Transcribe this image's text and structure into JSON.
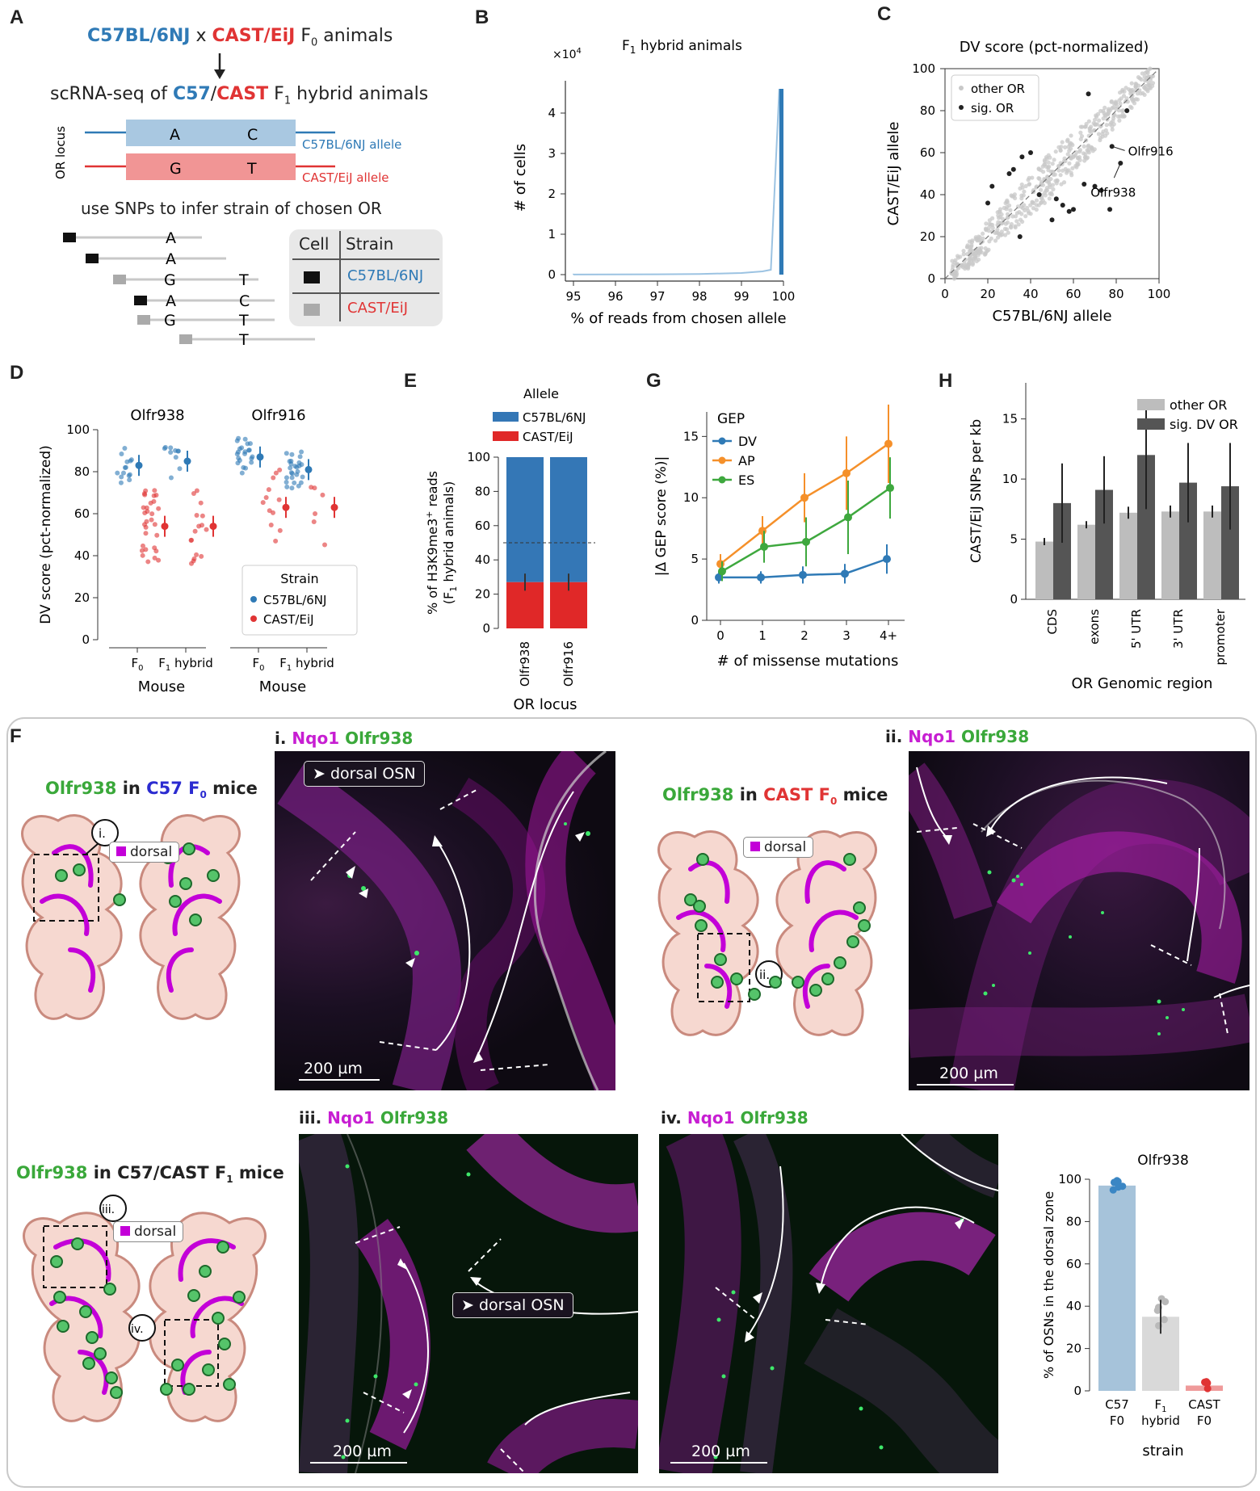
{
  "panels": {
    "A": {
      "letter": "A",
      "cross_a": "C57BL/6NJ",
      "cross_x": "x",
      "cross_b": "CAST/EiJ",
      "cross_f0": "F",
      "cross_f0_sub": "0",
      "cross_animals": "animals",
      "scrna_prefix": "scRNA-seq of ",
      "scrna_c57": "C57",
      "scrna_slash": "/",
      "scrna_cast": "CAST",
      "scrna_f1": " F",
      "scrna_f1_sub": "1",
      "scrna_suffix": " hybrid animals",
      "or_locus": "OR locus",
      "snp_a": "A",
      "snp_c": "C",
      "snp_g": "G",
      "snp_t": "T",
      "c57_allele": "C57BL/6NJ allele",
      "cast_allele": "CAST/EiJ allele",
      "snp_heading": "use SNPs to infer strain of chosen OR",
      "table_cell": "Cell",
      "table_strain": "Strain",
      "table_row1": "C57BL/6NJ",
      "table_row2": "CAST/EiJ"
    },
    "B": {
      "letter": "B"
    },
    "C": {
      "letter": "C"
    },
    "D": {
      "letter": "D"
    },
    "E": {
      "letter": "E"
    },
    "F": {
      "letter": "F",
      "c57_title_olfr": "Olfr938",
      "c57_title_in": " in ",
      "c57_title_strain": "C57 F",
      "c57_title_sub": "0",
      "c57_title_end": " mice",
      "cast_title_olfr": "Olfr938",
      "cast_title_in": " in ",
      "cast_title_strain": "CAST F",
      "cast_title_sub": "0",
      "cast_title_end": " mice",
      "f1_title_olfr": "Olfr938",
      "f1_title_in": " in C57/CAST F",
      "f1_title_sub": "1",
      "f1_title_end": " mice",
      "dorsal": "dorsal",
      "box_i": "i.",
      "box_ii": "ii.",
      "box_iii": "iii.",
      "box_iv": "iv.",
      "img_i_label": "i.",
      "img_ii_label": "ii.",
      "img_iii_label": "iii.",
      "img_iv_label": "iv.",
      "nqo1": "Nqo1",
      "olfr938": "Olfr938",
      "dorsal_osn": "dorsal OSN",
      "scale": "200 µm"
    },
    "G": {
      "letter": "G"
    },
    "H": {
      "letter": "H"
    }
  },
  "chart_data": [
    {
      "id": "B",
      "type": "bar",
      "title": "F1 hybrid animals",
      "title_main": "F",
      "title_sub": "1",
      "title_rest": " hybrid animals",
      "xlabel": "% of reads from chosen allele",
      "ylabel": "# of cells",
      "multiplier": "×10",
      "multiplier_exp": "4",
      "xlim": [
        95,
        100
      ],
      "ylim": [
        0,
        4.6
      ],
      "xticks": [
        "95",
        "96",
        "97",
        "98",
        "99",
        "100"
      ],
      "yticks": [
        "0",
        "1",
        "2",
        "3",
        "4"
      ],
      "x": [
        95.0,
        96.0,
        97.0,
        98.0,
        99.0,
        99.5,
        99.7,
        99.9
      ],
      "values": [
        0.002,
        0.004,
        0.008,
        0.015,
        0.04,
        0.08,
        0.12,
        4.6
      ]
    },
    {
      "id": "C",
      "type": "scatter",
      "title": "DV score (pct-normalized)",
      "xlabel": "C57BL/6NJ allele",
      "ylabel": "CAST/EiJ allele",
      "xlim": [
        0,
        100
      ],
      "ylim": [
        0,
        100
      ],
      "xticks": [
        "0",
        "20",
        "40",
        "60",
        "80",
        "100"
      ],
      "yticks": [
        "0",
        "20",
        "40",
        "60",
        "80",
        "100"
      ],
      "legend": [
        "other OR",
        "sig. OR"
      ],
      "legend_loc": "top-left",
      "annotations": [
        "Olfr916",
        "Olfr938"
      ],
      "sig_points": [
        [
          78,
          63
        ],
        [
          82,
          55
        ],
        [
          67,
          88
        ],
        [
          40,
          60
        ],
        [
          36,
          58
        ],
        [
          32,
          52
        ],
        [
          30,
          50
        ],
        [
          22,
          44
        ],
        [
          20,
          36
        ],
        [
          44,
          40
        ],
        [
          52,
          38
        ],
        [
          55,
          35
        ],
        [
          58,
          32
        ],
        [
          60,
          33
        ],
        [
          50,
          28
        ],
        [
          35,
          20
        ],
        [
          65,
          45
        ],
        [
          70,
          44
        ],
        [
          73,
          42
        ],
        [
          77,
          33
        ],
        [
          85,
          80
        ]
      ]
    },
    {
      "id": "D",
      "type": "scatter",
      "xlabel": "Mouse",
      "ylabel": "DV score (pct-normalized)",
      "groups": [
        "Olfr938",
        "Olfr916"
      ],
      "categories": [
        "F0",
        "F1 hybrid"
      ],
      "cat_main": [
        "F",
        "F"
      ],
      "cat_sub": [
        "0",
        "1"
      ],
      "cat_rest": [
        "",
        " hybrid"
      ],
      "ylim": [
        0,
        100
      ],
      "yticks": [
        "0",
        "20",
        "40",
        "60",
        "80",
        "100"
      ],
      "legend_title": "Strain",
      "series": [
        {
          "name": "C57BL/6NJ",
          "color": "#2f7ab6",
          "means": [
            83,
            85,
            87,
            81
          ]
        },
        {
          "name": "CAST/EiJ",
          "color": "#e03434",
          "means": [
            54,
            54,
            63,
            63
          ]
        }
      ]
    },
    {
      "id": "E",
      "type": "bar",
      "xlabel": "OR locus",
      "ylabel": "% of H3K9me3+ reads (F1 hybrid animals)",
      "ylabel_line1": "% of H3K9me3",
      "ylabel_sup": "+",
      "ylabel_line1_end": " reads",
      "ylabel_line2": "(F",
      "ylabel_line2_sub": "1",
      "ylabel_line2_end": " hybrid animals)",
      "categories": [
        "Olfr938",
        "Olfr916"
      ],
      "ylim": [
        0,
        100
      ],
      "yticks": [
        "0",
        "20",
        "40",
        "60",
        "80",
        "100"
      ],
      "legend_title": "Allele",
      "series": [
        {
          "name": "C57BL/6NJ",
          "color": "#3477b6",
          "values": [
            73,
            73
          ]
        },
        {
          "name": "CAST/EiJ",
          "color": "#e02828",
          "values": [
            27,
            27
          ]
        }
      ]
    },
    {
      "id": "G",
      "type": "line",
      "xlabel": "# of missense mutations",
      "ylabel": "|Δ GEP score (%)|",
      "categories": [
        "0",
        "1",
        "2",
        "3",
        "4+"
      ],
      "ylim": [
        0,
        17
      ],
      "yticks": [
        "0",
        "5",
        "10",
        "15"
      ],
      "legend_title": "GEP",
      "series": [
        {
          "name": "DV",
          "color": "#2f7ab6",
          "values": [
            3.5,
            3.5,
            3.7,
            3.8,
            5.0
          ],
          "err": [
            0.5,
            0.5,
            0.7,
            0.8,
            1.2
          ]
        },
        {
          "name": "AP",
          "color": "#f5902a",
          "values": [
            4.6,
            7.3,
            10.0,
            12.0,
            14.4
          ],
          "err": [
            0.8,
            1.2,
            2.0,
            3.0,
            3.2
          ]
        },
        {
          "name": "ES",
          "color": "#3ea83e",
          "values": [
            4.0,
            6.0,
            6.4,
            8.4,
            10.8
          ],
          "err": [
            0.8,
            1.3,
            2.0,
            3.0,
            2.5
          ]
        }
      ]
    },
    {
      "id": "H",
      "type": "bar",
      "xlabel": "OR Genomic region",
      "ylabel": "CAST/EiJ SNPs per kb",
      "categories": [
        "CDS",
        "exons",
        "5' UTR",
        "3' UTR",
        "promoter"
      ],
      "ylim": [
        0,
        18
      ],
      "yticks": [
        "0",
        "5",
        "10",
        "15"
      ],
      "series": [
        {
          "name": "other OR",
          "color": "#bdbdbd",
          "values": [
            4.8,
            6.2,
            7.2,
            7.3,
            7.3
          ],
          "err": [
            0.3,
            0.3,
            0.5,
            0.5,
            0.5
          ]
        },
        {
          "name": "sig. DV OR",
          "color": "#555555",
          "values": [
            8.0,
            9.1,
            12.0,
            9.7,
            9.4
          ],
          "err": [
            3.3,
            2.8,
            4.5,
            3.3,
            3.6
          ]
        }
      ]
    },
    {
      "id": "F-bar",
      "type": "bar",
      "title": "Olfr938",
      "xlabel": "strain",
      "ylabel": "% of OSNs in the dorsal zone",
      "categories": [
        "C57 F0",
        "F1 hybrid",
        "CAST F0"
      ],
      "cat_line1": [
        "C57",
        "F",
        "CAST"
      ],
      "cat_line1_sub": [
        "",
        "1",
        ""
      ],
      "cat_line2": [
        "F0",
        "hybrid",
        "F0"
      ],
      "ylim": [
        0,
        100
      ],
      "yticks": [
        "0",
        "20",
        "40",
        "60",
        "80",
        "100"
      ],
      "values": [
        97,
        35,
        2.5
      ],
      "colors": [
        "#a6c3da",
        "#d9d9d9",
        "#ef9a9a"
      ]
    }
  ]
}
